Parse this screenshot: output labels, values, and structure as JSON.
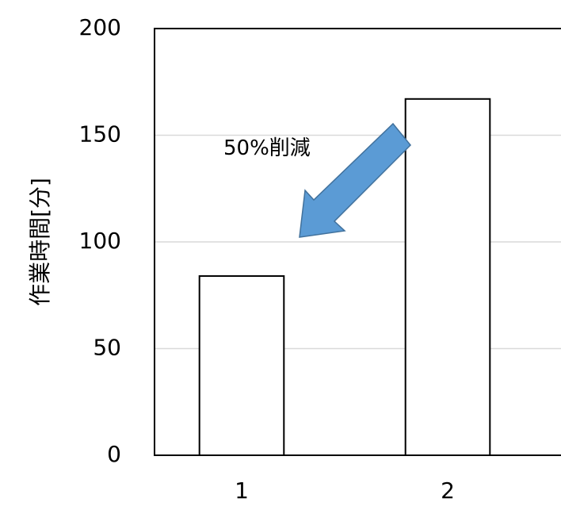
{
  "chart_data": {
    "type": "bar",
    "categories": [
      "1",
      "2"
    ],
    "values": [
      84,
      167
    ],
    "ylabel": "作業時間[分]",
    "xlabel": "",
    "ylim": [
      0,
      200
    ],
    "yticks": [
      "0",
      "50",
      "100",
      "150",
      "200"
    ],
    "grid": true,
    "bar_fill": "#ffffff",
    "bar_stroke": "#000000",
    "annotation": {
      "text": "50%削減",
      "arrow_color": "#5b9bd5",
      "arrow_stroke": "#41719c"
    }
  }
}
